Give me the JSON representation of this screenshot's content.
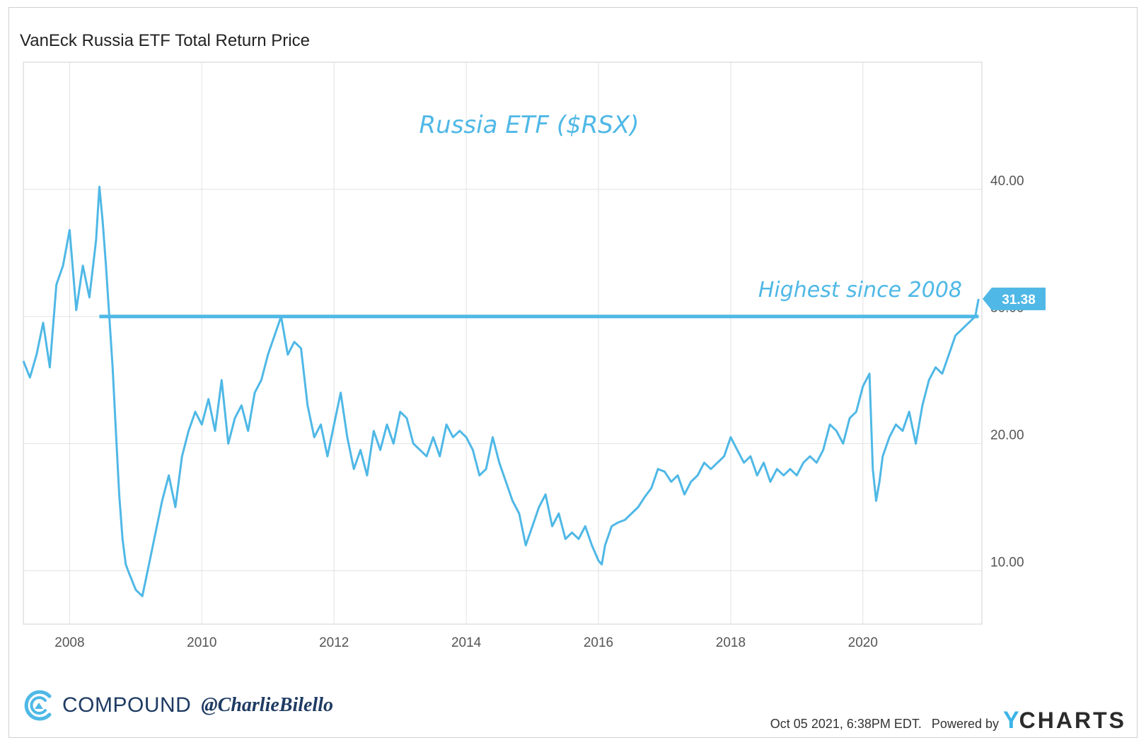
{
  "header": {
    "title": "VanEck Russia ETF Total Return Price"
  },
  "footer": {
    "brand": "COMPOUND",
    "handle": "@CharlieBilello",
    "timestamp": "Oct 05 2021, 6:38PM EDT.",
    "powered_by": "Powered by",
    "ycharts_y": "Y",
    "ycharts_rest": "CHARTS"
  },
  "colors": {
    "line": "#4fb8e6",
    "grid": "#e2e2e2",
    "axis_text": "#555555",
    "brand": "#1f3b63"
  },
  "chart_data": {
    "type": "line",
    "title": "VanEck Russia ETF Total Return Price",
    "annotation_title": "Russia ETF ($RSX)",
    "annotation_reference": "Highest since 2008",
    "reference_line": {
      "y": 30.0,
      "x_start": 2008.45,
      "x_end": 2021.75
    },
    "last_value_label": "31.38",
    "xlabel": "",
    "ylabel": "",
    "xlim": [
      2007.3,
      2021.8
    ],
    "ylim": [
      5.8,
      50.0
    ],
    "x_ticks": [
      2008,
      2010,
      2012,
      2014,
      2016,
      2018,
      2020
    ],
    "x_tick_labels": [
      "2008",
      "2010",
      "2012",
      "2014",
      "2016",
      "2018",
      "2020"
    ],
    "y_ticks": [
      10,
      20,
      30,
      40
    ],
    "y_tick_labels": [
      "10.00",
      "20.00",
      "30.00",
      "40.00"
    ],
    "grid": true,
    "series": [
      {
        "x": [
          2007.3,
          2007.4,
          2007.5,
          2007.6,
          2007.7,
          2007.8,
          2007.9,
          2008.0,
          2008.1,
          2008.2,
          2008.3,
          2008.4,
          2008.45,
          2008.5,
          2008.55,
          2008.6,
          2008.65,
          2008.7,
          2008.75,
          2008.8,
          2008.85,
          2008.9,
          2009.0,
          2009.1,
          2009.2,
          2009.3,
          2009.4,
          2009.5,
          2009.6,
          2009.7,
          2009.8,
          2009.9,
          2010.0,
          2010.1,
          2010.2,
          2010.3,
          2010.4,
          2010.5,
          2010.6,
          2010.7,
          2010.8,
          2010.9,
          2011.0,
          2011.1,
          2011.2,
          2011.3,
          2011.4,
          2011.5,
          2011.6,
          2011.7,
          2011.8,
          2011.9,
          2012.0,
          2012.1,
          2012.2,
          2012.3,
          2012.4,
          2012.5,
          2012.6,
          2012.7,
          2012.8,
          2012.9,
          2013.0,
          2013.1,
          2013.2,
          2013.3,
          2013.4,
          2013.5,
          2013.6,
          2013.7,
          2013.8,
          2013.9,
          2014.0,
          2014.1,
          2014.2,
          2014.3,
          2014.4,
          2014.5,
          2014.6,
          2014.7,
          2014.8,
          2014.9,
          2015.0,
          2015.1,
          2015.2,
          2015.3,
          2015.4,
          2015.5,
          2015.6,
          2015.7,
          2015.8,
          2015.9,
          2016.0,
          2016.05,
          2016.1,
          2016.2,
          2016.3,
          2016.4,
          2016.5,
          2016.6,
          2016.7,
          2016.8,
          2016.9,
          2017.0,
          2017.1,
          2017.2,
          2017.3,
          2017.4,
          2017.5,
          2017.6,
          2017.7,
          2017.8,
          2017.9,
          2018.0,
          2018.1,
          2018.2,
          2018.3,
          2018.4,
          2018.5,
          2018.6,
          2018.7,
          2018.8,
          2018.9,
          2019.0,
          2019.1,
          2019.2,
          2019.3,
          2019.4,
          2019.5,
          2019.6,
          2019.7,
          2019.8,
          2019.9,
          2020.0,
          2020.1,
          2020.15,
          2020.2,
          2020.25,
          2020.3,
          2020.4,
          2020.5,
          2020.6,
          2020.7,
          2020.8,
          2020.9,
          2021.0,
          2021.1,
          2021.2,
          2021.3,
          2021.4,
          2021.5,
          2021.6,
          2021.7,
          2021.75
        ],
        "values": [
          26.5,
          25.2,
          27.0,
          29.5,
          26.0,
          32.5,
          34.0,
          36.8,
          30.5,
          34.0,
          31.5,
          36.0,
          40.2,
          37.5,
          34.0,
          30.0,
          26.0,
          21.0,
          16.0,
          12.5,
          10.5,
          9.8,
          8.5,
          8.0,
          10.5,
          13.0,
          15.5,
          17.5,
          15.0,
          19.0,
          21.0,
          22.5,
          21.5,
          23.5,
          21.0,
          25.0,
          20.0,
          22.0,
          23.0,
          21.0,
          24.0,
          25.0,
          27.0,
          28.5,
          30.0,
          27.0,
          28.0,
          27.5,
          23.0,
          20.5,
          21.5,
          19.0,
          21.5,
          24.0,
          20.5,
          18.0,
          19.5,
          17.5,
          21.0,
          19.5,
          21.5,
          20.0,
          22.5,
          22.0,
          20.0,
          19.5,
          19.0,
          20.5,
          19.0,
          21.5,
          20.5,
          21.0,
          20.5,
          19.5,
          17.5,
          18.0,
          20.5,
          18.5,
          17.0,
          15.5,
          14.5,
          12.0,
          13.5,
          15.0,
          16.0,
          13.5,
          14.5,
          12.5,
          13.0,
          12.5,
          13.5,
          12.0,
          10.8,
          10.5,
          12.0,
          13.5,
          13.8,
          14.0,
          14.5,
          15.0,
          15.8,
          16.5,
          18.0,
          17.8,
          17.0,
          17.5,
          16.0,
          17.0,
          17.5,
          18.5,
          18.0,
          18.5,
          19.0,
          20.5,
          19.5,
          18.5,
          19.0,
          17.5,
          18.5,
          17.0,
          18.0,
          17.5,
          18.0,
          17.5,
          18.5,
          19.0,
          18.5,
          19.5,
          21.5,
          21.0,
          20.0,
          22.0,
          22.5,
          24.5,
          25.5,
          18.0,
          15.5,
          17.0,
          19.0,
          20.5,
          21.5,
          21.0,
          22.5,
          20.0,
          23.0,
          25.0,
          26.0,
          25.5,
          27.0,
          28.5,
          29.0,
          29.5,
          30.0,
          31.38
        ]
      }
    ]
  }
}
